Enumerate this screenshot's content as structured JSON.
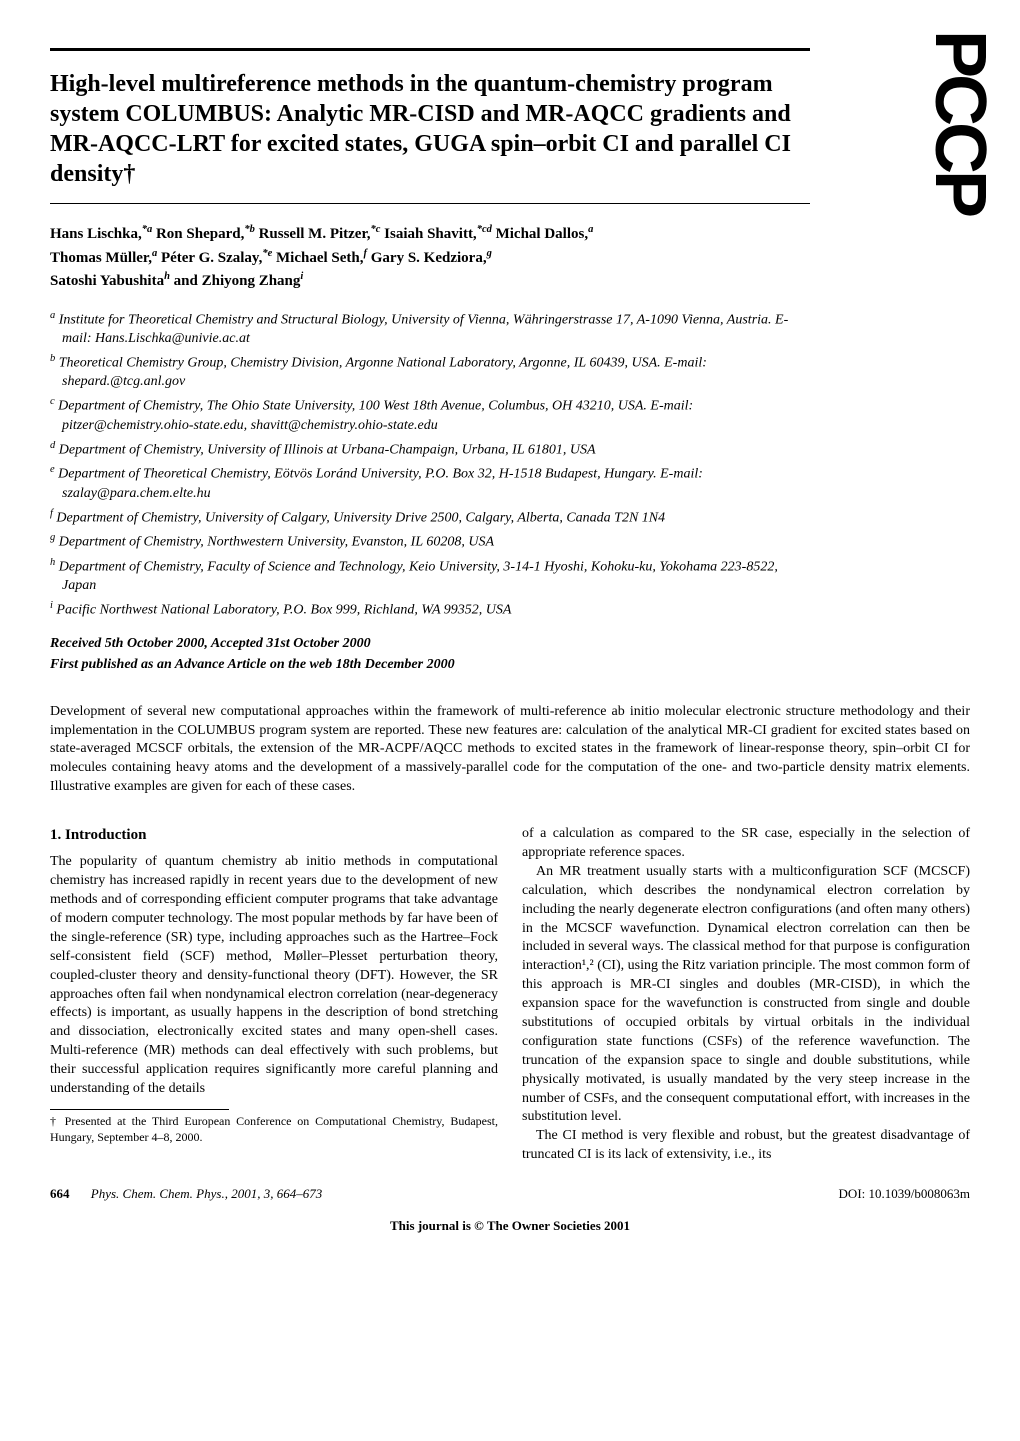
{
  "logo": "PCCP",
  "title": "High-level multireference methods in the quantum-chemistry program system COLUMBUS: Analytic MR-CISD and MR-AQCC gradients and MR-AQCC-LRT for excited states, GUGA spin–orbit CI and parallel CI density†",
  "authors": {
    "a1": "Hans Lischka,",
    "s1": "*a",
    "a2": " Ron Shepard,",
    "s2": "*b",
    "a3": " Russell M. Pitzer,",
    "s3": "*c",
    "a4": " Isaiah Shavitt,",
    "s4": "*cd",
    "a5": " Michal Dallos,",
    "s5": "a",
    "a6": "Thomas Müller,",
    "s6": "a",
    "a7": " Péter G. Szalay,",
    "s7": "*e",
    "a8": " Michael Seth,",
    "s8": "f",
    "a9": " Gary S. Kedziora,",
    "s9": "g",
    "a10": "Satoshi Yabushita",
    "s10": "h",
    "a11": " and Zhiyong Zhang",
    "s11": "i"
  },
  "affiliations": {
    "a": {
      "sup": "a",
      "text": " Institute for Theoretical Chemistry and Structural Biology, University of Vienna, Währingerstrasse 17, A-1090 Vienna, Austria. E-mail: Hans.Lischka@univie.ac.at"
    },
    "b": {
      "sup": "b",
      "text": " Theoretical Chemistry Group, Chemistry Division, Argonne National Laboratory, Argonne, IL 60439, USA. E-mail: shepard.@tcg.anl.gov"
    },
    "c": {
      "sup": "c",
      "text": " Department of Chemistry, The Ohio State University, 100 West 18th Avenue, Columbus, OH 43210, USA. E-mail: pitzer@chemistry.ohio-state.edu, shavitt@chemistry.ohio-state.edu"
    },
    "d": {
      "sup": "d",
      "text": " Department of Chemistry, University of Illinois at Urbana-Champaign, Urbana, IL 61801, USA"
    },
    "e": {
      "sup": "e",
      "text": " Department of Theoretical Chemistry, Eötvös Loránd University, P.O. Box 32, H-1518 Budapest, Hungary. E-mail: szalay@para.chem.elte.hu"
    },
    "f": {
      "sup": "f",
      "text": " Department of Chemistry, University of Calgary, University Drive 2500, Calgary, Alberta, Canada T2N 1N4"
    },
    "g": {
      "sup": "g",
      "text": " Department of Chemistry, Northwestern University, Evanston, IL 60208, USA"
    },
    "h": {
      "sup": "h",
      "text": " Department of Chemistry, Faculty of Science and Technology, Keio University, 3-14-1 Hyoshi, Kohoku-ku, Yokohama 223-8522, Japan"
    },
    "i": {
      "sup": "i",
      "text": " Pacific Northwest National Laboratory, P.O. Box 999, Richland, WA 99352, USA"
    }
  },
  "dates": {
    "received": "Received 5th October 2000, Accepted 31st October 2000",
    "published": "First published as an Advance Article on the web 18th December 2000"
  },
  "abstract": "Development of several new computational approaches within the framework of multi-reference ab initio molecular electronic structure methodology and their implementation in the COLUMBUS program system are reported. These new features are: calculation of the analytical MR-CI gradient for excited states based on state-averaged MCSCF orbitals, the extension of the MR-ACPF/AQCC methods to excited states in the framework of linear-response theory, spin–orbit CI for molecules containing heavy atoms and the development of a massively-parallel code for the computation of the one- and two-particle density matrix elements. Illustrative examples are given for each of these cases.",
  "section1_heading": "1.  Introduction",
  "col1_p1": "The popularity of quantum chemistry ab initio methods in computational chemistry has increased rapidly in recent years due to the development of new methods and of corresponding efficient computer programs that take advantage of modern computer technology. The most popular methods by far have been of the single-reference (SR) type, including approaches such as the Hartree–Fock self-consistent field (SCF) method, Møller–Plesset perturbation theory, coupled-cluster theory and density-functional theory (DFT). However, the SR approaches often fail when nondynamical electron correlation (near-degeneracy effects) is important, as usually happens in the description of bond stretching and dissociation, electronically excited states and many open-shell cases. Multi-reference (MR) methods can deal effectively with such problems, but their successful application requires significantly more careful planning and understanding of the details",
  "footnote": "† Presented at the Third European Conference on Computational Chemistry, Budapest, Hungary, September 4–8, 2000.",
  "col2_p1": "of a calculation as compared to the SR case, especially in the selection of appropriate reference spaces.",
  "col2_p2": "An MR treatment usually starts with a multiconfiguration SCF (MCSCF) calculation, which describes the nondynamical electron correlation by including the nearly degenerate electron configurations (and often many others) in the MCSCF wavefunction. Dynamical electron correlation can then be included in several ways. The classical method for that purpose is configuration interaction¹,² (CI), using the Ritz variation principle. The most common form of this approach is MR-CI singles and doubles (MR-CISD), in which the expansion space for the wavefunction is constructed from single and double substitutions of occupied orbitals by virtual orbitals in the individual configuration state functions (CSFs) of the reference wavefunction. The truncation of the expansion space to single and double substitutions, while physically motivated, is usually mandated by the very steep increase in the number of CSFs, and the consequent computational effort, with increases in the substitution level.",
  "col2_p3": "The CI method is very flexible and robust, but the greatest disadvantage of truncated CI is its lack of extensivity, i.e., its",
  "footer": {
    "page": "664",
    "journal": "Phys. Chem. Chem. Phys., 2001, 3, 664–673",
    "doi": "DOI: 10.1039/b008063m",
    "bottom": "This journal is © The Owner Societies 2001"
  }
}
